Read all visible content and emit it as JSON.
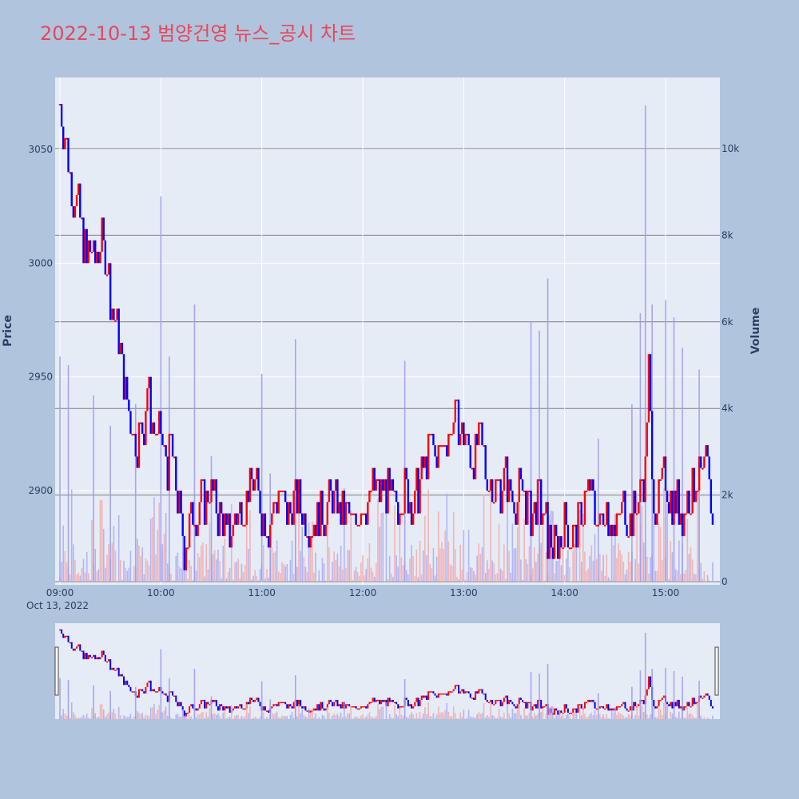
{
  "chart_data": {
    "type": "candlestick",
    "title": "2022-10-13 범양건영 뉴스_공시 차트",
    "ylabel": "Price",
    "y2label": "Volume",
    "date_label": "Oct 13, 2022",
    "x_ticks": [
      "09:00",
      "10:00",
      "11:00",
      "12:00",
      "13:00",
      "14:00",
      "15:00"
    ],
    "y_ticks": [
      2900,
      2950,
      3000,
      3050
    ],
    "y2_ticks": [
      "0",
      "2k",
      "4k",
      "6k",
      "8k",
      "10k"
    ],
    "ylim": [
      2860,
      3080
    ],
    "y2lim": [
      0,
      11700
    ],
    "x_range": [
      "09:00",
      "15:30"
    ],
    "colors": {
      "up": "#ff0000",
      "down": "#0000ff",
      "background": "#b0c4de",
      "plot_bg": "#e5ecf6",
      "title": "#e8475a"
    },
    "series": [
      {
        "name": "price_path",
        "points": [
          [
            "09:00",
            3070
          ],
          [
            "09:02",
            3060
          ],
          [
            "09:04",
            3050
          ],
          [
            "09:06",
            3040
          ],
          [
            "09:08",
            3030
          ],
          [
            "09:10",
            3025
          ],
          [
            "09:12",
            3020
          ],
          [
            "09:14",
            3010
          ],
          [
            "09:16",
            3000
          ],
          [
            "09:18",
            3005
          ],
          [
            "09:20",
            3000
          ],
          [
            "09:25",
            3010
          ],
          [
            "09:28",
            3000
          ],
          [
            "09:30",
            2985
          ],
          [
            "09:32",
            2975
          ],
          [
            "09:34",
            2970
          ],
          [
            "09:36",
            2960
          ],
          [
            "09:38",
            2950
          ],
          [
            "09:40",
            2940
          ],
          [
            "09:42",
            2930
          ],
          [
            "09:44",
            2925
          ],
          [
            "09:46",
            2920
          ],
          [
            "09:50",
            2930
          ],
          [
            "09:52",
            2945
          ],
          [
            "09:54",
            2935
          ],
          [
            "09:56",
            2925
          ],
          [
            "09:58",
            2920
          ],
          [
            "10:00",
            2925
          ],
          [
            "10:02",
            2915
          ],
          [
            "10:04",
            2910
          ],
          [
            "10:06",
            2920
          ],
          [
            "10:08",
            2905
          ],
          [
            "10:10",
            2895
          ],
          [
            "10:12",
            2885
          ],
          [
            "10:14",
            2875
          ],
          [
            "10:20",
            2890
          ],
          [
            "10:25",
            2895
          ],
          [
            "10:30",
            2900
          ],
          [
            "10:35",
            2890
          ],
          [
            "10:40",
            2880
          ],
          [
            "10:45",
            2890
          ],
          [
            "10:50",
            2895
          ],
          [
            "10:55",
            2905
          ],
          [
            "11:00",
            2890
          ],
          [
            "11:05",
            2885
          ],
          [
            "11:10",
            2900
          ],
          [
            "11:15",
            2890
          ],
          [
            "11:20",
            2895
          ],
          [
            "11:25",
            2890
          ],
          [
            "11:30",
            2885
          ],
          [
            "11:35",
            2890
          ],
          [
            "11:40",
            2895
          ],
          [
            "11:50",
            2890
          ],
          [
            "11:55",
            2885
          ],
          [
            "12:00",
            2895
          ],
          [
            "12:10",
            2900
          ],
          [
            "12:20",
            2895
          ],
          [
            "12:25",
            2900
          ],
          [
            "12:30",
            2895
          ],
          [
            "12:35",
            2905
          ],
          [
            "12:40",
            2920
          ],
          [
            "12:45",
            2915
          ],
          [
            "12:50",
            2925
          ],
          [
            "12:55",
            2930
          ],
          [
            "13:00",
            2925
          ],
          [
            "13:05",
            2915
          ],
          [
            "13:10",
            2920
          ],
          [
            "13:15",
            2905
          ],
          [
            "13:20",
            2900
          ],
          [
            "13:25",
            2905
          ],
          [
            "13:30",
            2895
          ],
          [
            "13:35",
            2900
          ],
          [
            "13:40",
            2890
          ],
          [
            "13:45",
            2895
          ],
          [
            "13:50",
            2880
          ],
          [
            "13:55",
            2875
          ],
          [
            "14:00",
            2885
          ],
          [
            "14:05",
            2880
          ],
          [
            "14:10",
            2890
          ],
          [
            "14:15",
            2900
          ],
          [
            "14:20",
            2885
          ],
          [
            "14:25",
            2895
          ],
          [
            "14:30",
            2880
          ],
          [
            "14:35",
            2895
          ],
          [
            "14:40",
            2885
          ],
          [
            "14:45",
            2900
          ],
          [
            "14:48",
            2910
          ],
          [
            "14:50",
            2955
          ],
          [
            "14:52",
            2900
          ],
          [
            "14:55",
            2895
          ],
          [
            "15:00",
            2905
          ],
          [
            "15:05",
            2895
          ],
          [
            "15:10",
            2890
          ],
          [
            "15:15",
            2900
          ],
          [
            "15:20",
            2905
          ],
          [
            "15:25",
            2910
          ],
          [
            "15:28",
            2885
          ]
        ]
      }
    ],
    "volume_peaks": [
      [
        "09:00",
        5200
      ],
      [
        "09:05",
        5000
      ],
      [
        "09:20",
        4300
      ],
      [
        "09:30",
        3600
      ],
      [
        "09:45",
        4100
      ],
      [
        "10:00",
        8900
      ],
      [
        "10:05",
        5200
      ],
      [
        "10:20",
        6400
      ],
      [
        "10:30",
        2900
      ],
      [
        "11:00",
        4800
      ],
      [
        "11:05",
        2500
      ],
      [
        "11:20",
        5600
      ],
      [
        "12:25",
        5100
      ],
      [
        "13:40",
        6000
      ],
      [
        "13:45",
        5800
      ],
      [
        "13:50",
        7000
      ],
      [
        "14:20",
        3300
      ],
      [
        "14:40",
        4100
      ],
      [
        "14:45",
        6200
      ],
      [
        "14:48",
        11000
      ],
      [
        "14:52",
        6400
      ],
      [
        "15:00",
        6500
      ],
      [
        "15:05",
        6100
      ],
      [
        "15:10",
        5400
      ],
      [
        "15:20",
        4900
      ]
    ]
  }
}
